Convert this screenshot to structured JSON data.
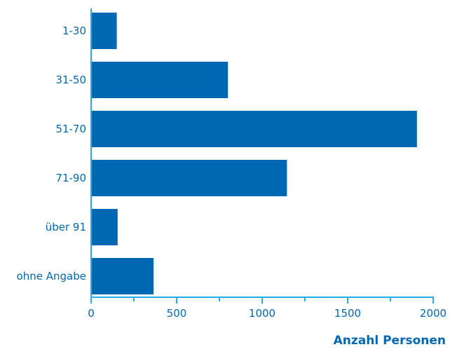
{
  "chart_data": {
    "type": "bar",
    "orientation": "horizontal",
    "categories": [
      "1-30",
      "31-50",
      "51-70",
      "71-90",
      "über 91",
      "ohne Angabe"
    ],
    "values": [
      150,
      800,
      1905,
      1145,
      155,
      365
    ],
    "xlabel": "Anzahl Personen",
    "ylabel": "",
    "xlim": [
      0,
      2000
    ],
    "xticks": [
      "0",
      "500",
      "1000",
      "1500",
      "2000"
    ],
    "grid": false,
    "colors": {
      "bar": "#0068b3",
      "axis": "#28aee6",
      "label": "#0068b3"
    }
  }
}
